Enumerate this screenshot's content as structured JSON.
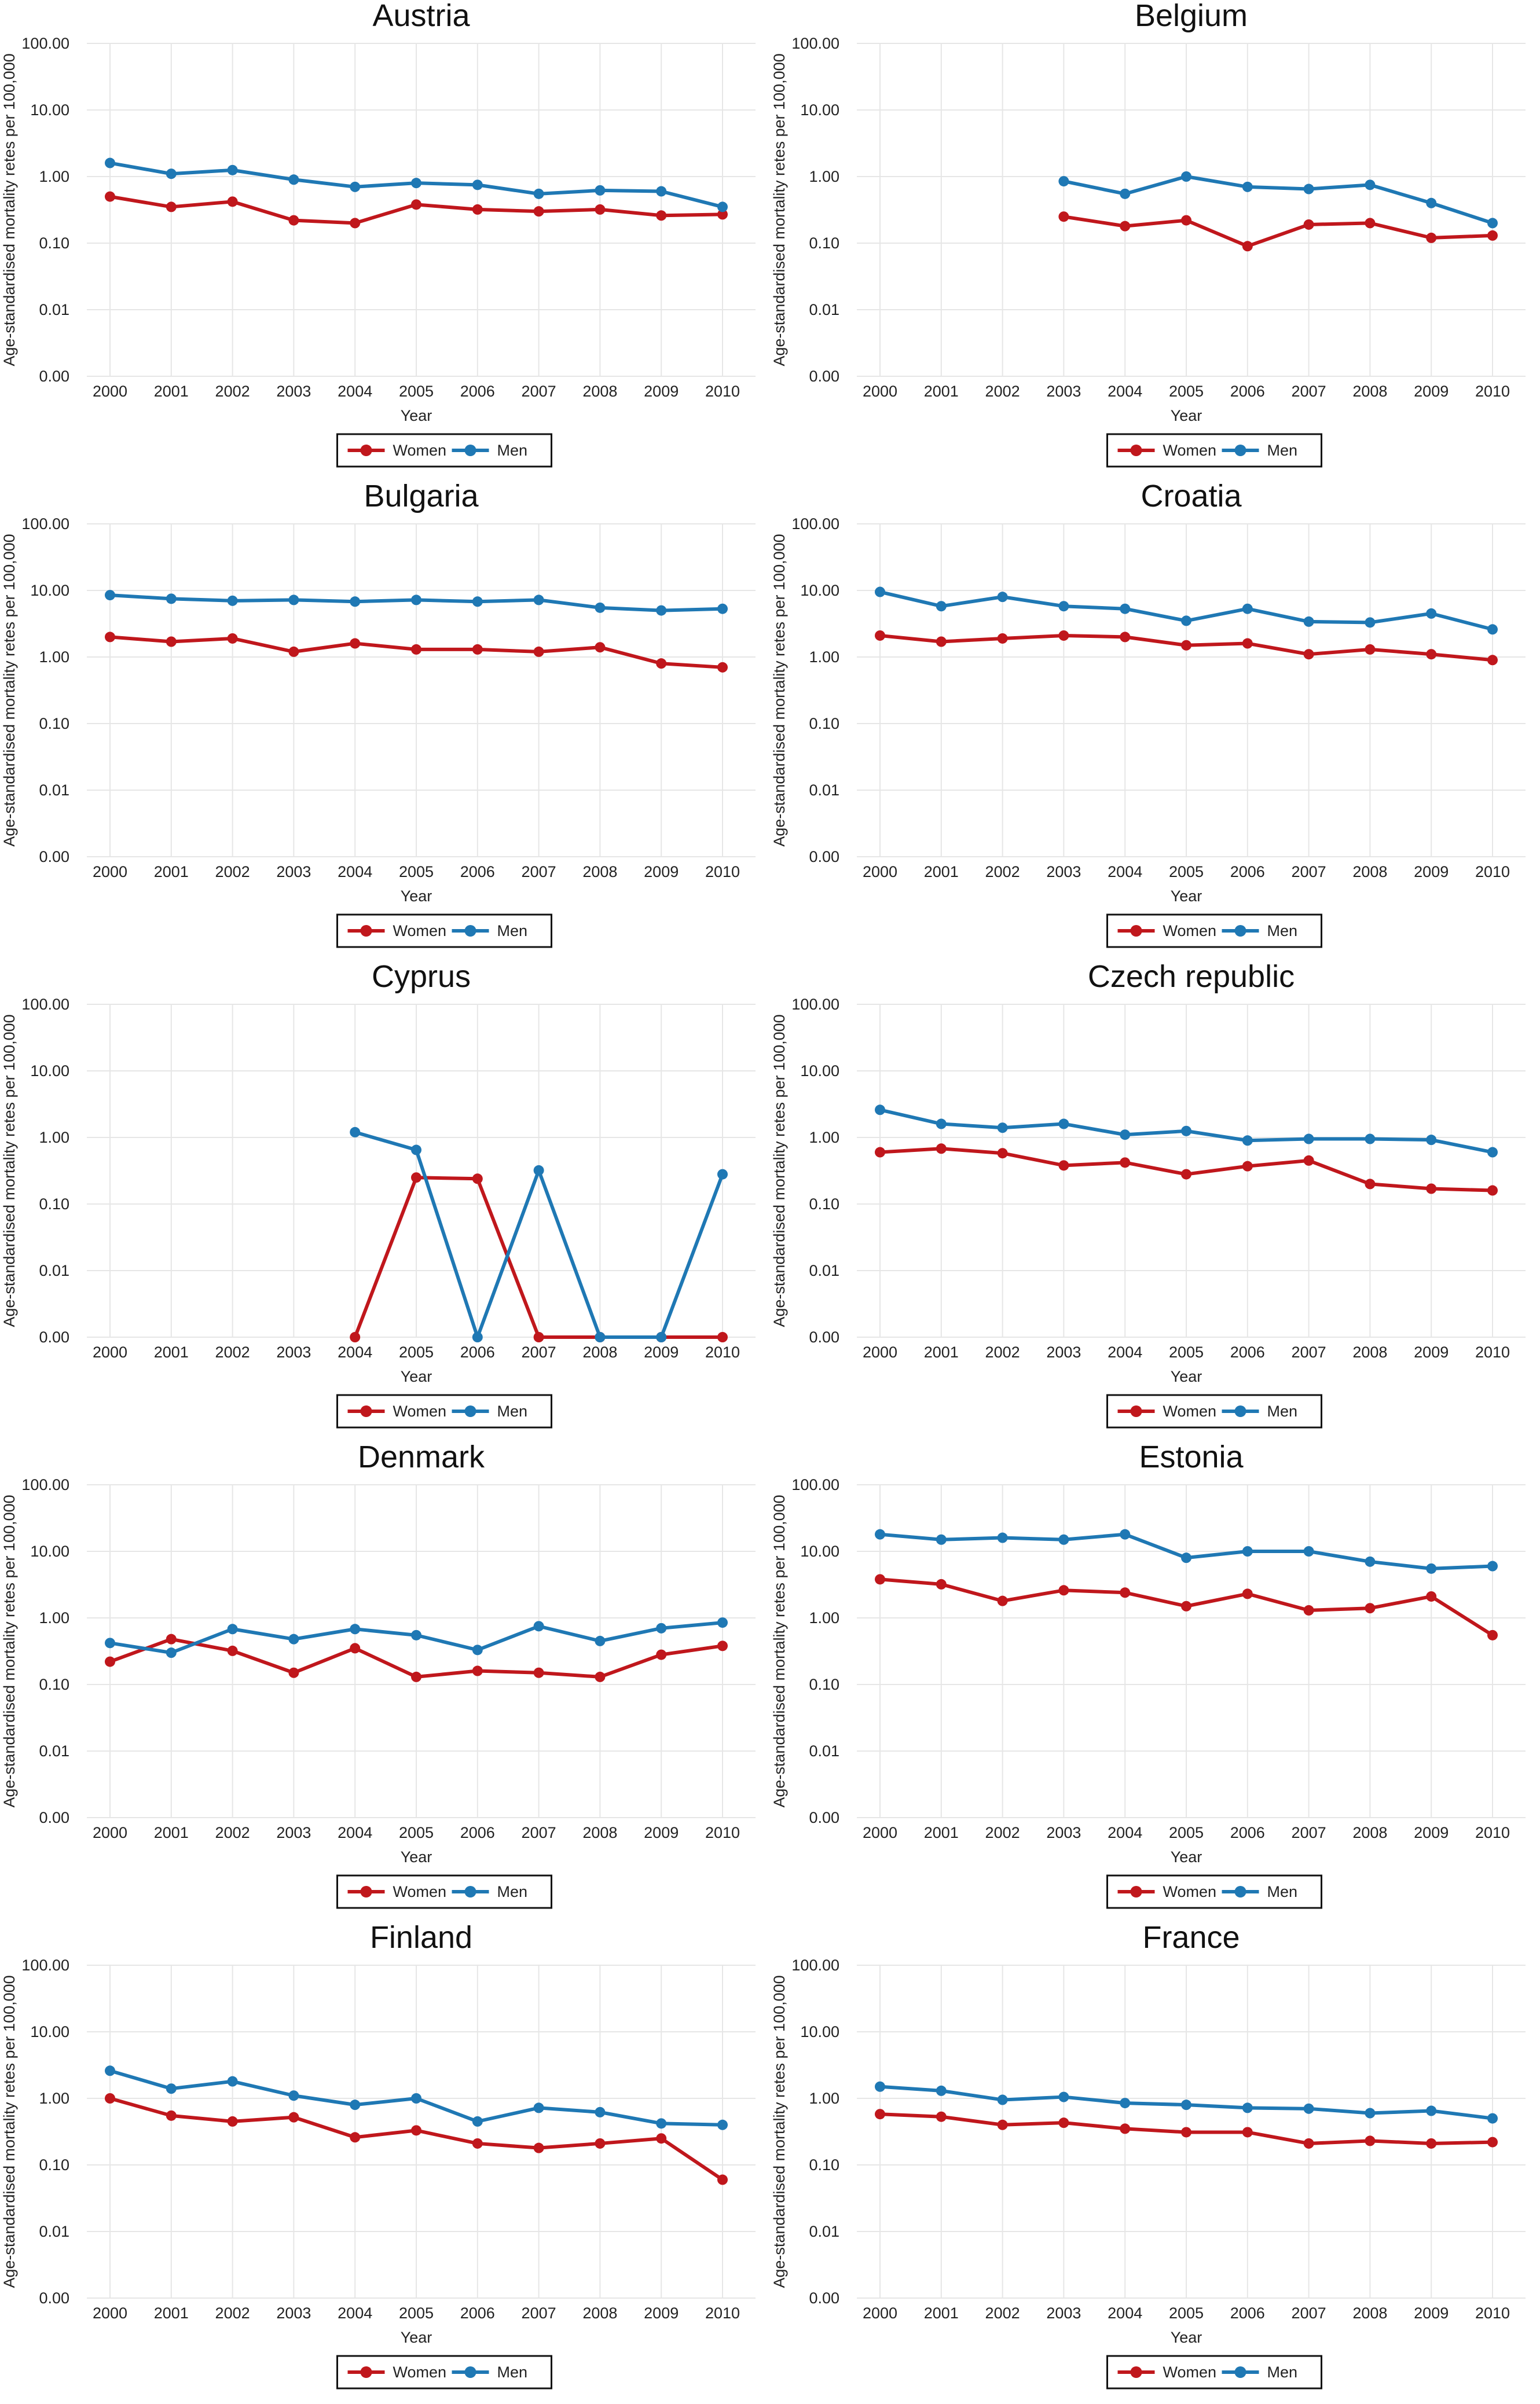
{
  "colors": {
    "women": "#c0171c",
    "men": "#1f78b4"
  },
  "chart_data": [
    {
      "type": "line",
      "title": "Austria",
      "xlabel": "Year",
      "ylabel": "Age-standardised mortality retes per 100,000",
      "scale": "log",
      "yticks": [
        "0.00",
        "0.01",
        "0.10",
        "1.00",
        "10.00",
        "100.00"
      ],
      "x": [
        "2000",
        "2001",
        "2002",
        "2003",
        "2004",
        "2005",
        "2006",
        "2007",
        "2008",
        "2009",
        "2010"
      ],
      "series": [
        {
          "name": "Women",
          "values": [
            0.5,
            0.35,
            0.42,
            0.22,
            0.2,
            0.38,
            0.32,
            0.3,
            0.32,
            0.26,
            0.27
          ]
        },
        {
          "name": "Men",
          "values": [
            1.6,
            1.1,
            1.25,
            0.9,
            0.7,
            0.8,
            0.75,
            0.55,
            0.62,
            0.6,
            0.35
          ]
        }
      ],
      "legend": [
        "Women",
        "Men"
      ]
    },
    {
      "type": "line",
      "title": "Belgium",
      "xlabel": "Year",
      "ylabel": "Age-standardised mortality retes per 100,000",
      "scale": "log",
      "yticks": [
        "0.00",
        "0.01",
        "0.10",
        "1.00",
        "10.00",
        "100.00"
      ],
      "x": [
        "2000",
        "2001",
        "2002",
        "2003",
        "2004",
        "2005",
        "2006",
        "2007",
        "2008",
        "2009",
        "2010"
      ],
      "series": [
        {
          "name": "Women",
          "values": [
            null,
            null,
            null,
            0.25,
            0.18,
            0.22,
            0.09,
            0.19,
            0.2,
            0.12,
            0.13
          ]
        },
        {
          "name": "Men",
          "values": [
            null,
            null,
            null,
            0.85,
            0.55,
            1.0,
            0.7,
            0.65,
            0.75,
            0.4,
            0.2
          ]
        }
      ],
      "legend": [
        "Women",
        "Men"
      ]
    },
    {
      "type": "line",
      "title": "Bulgaria",
      "xlabel": "Year",
      "ylabel": "Age-standardised mortality retes per 100,000",
      "scale": "log",
      "yticks": [
        "0.00",
        "0.01",
        "0.10",
        "1.00",
        "10.00",
        "100.00"
      ],
      "x": [
        "2000",
        "2001",
        "2002",
        "2003",
        "2004",
        "2005",
        "2006",
        "2007",
        "2008",
        "2009",
        "2010"
      ],
      "series": [
        {
          "name": "Women",
          "values": [
            2.0,
            1.7,
            1.9,
            1.2,
            1.6,
            1.3,
            1.3,
            1.2,
            1.4,
            0.8,
            0.7
          ]
        },
        {
          "name": "Men",
          "values": [
            8.5,
            7.5,
            7.0,
            7.2,
            6.8,
            7.2,
            6.8,
            7.2,
            5.5,
            5.0,
            5.3
          ]
        }
      ],
      "legend": [
        "Women",
        "Men"
      ]
    },
    {
      "type": "line",
      "title": "Croatia",
      "xlabel": "Year",
      "ylabel": "Age-standardised mortality retes per 100,000",
      "scale": "log",
      "yticks": [
        "0.00",
        "0.01",
        "0.10",
        "1.00",
        "10.00",
        "100.00"
      ],
      "x": [
        "2000",
        "2001",
        "2002",
        "2003",
        "2004",
        "2005",
        "2006",
        "2007",
        "2008",
        "2009",
        "2010"
      ],
      "series": [
        {
          "name": "Women",
          "values": [
            2.1,
            1.7,
            1.9,
            2.1,
            2.0,
            1.5,
            1.6,
            1.1,
            1.3,
            1.1,
            0.9
          ]
        },
        {
          "name": "Men",
          "values": [
            9.5,
            5.8,
            8.0,
            5.8,
            5.3,
            3.5,
            5.3,
            3.4,
            3.3,
            4.5,
            2.6
          ]
        }
      ],
      "legend": [
        "Women",
        "Men"
      ]
    },
    {
      "type": "line",
      "title": "Cyprus",
      "xlabel": "Year",
      "ylabel": "Age-standardised mortality retes per 100,000",
      "scale": "log",
      "yticks": [
        "0.00",
        "0.01",
        "0.10",
        "1.00",
        "10.00",
        "100.00"
      ],
      "x": [
        "2000",
        "2001",
        "2002",
        "2003",
        "2004",
        "2005",
        "2006",
        "2007",
        "2008",
        "2009",
        "2010"
      ],
      "series": [
        {
          "name": "Women",
          "values": [
            null,
            null,
            null,
            null,
            0.0,
            0.25,
            0.24,
            0.0,
            0.0,
            0.0,
            0.0
          ]
        },
        {
          "name": "Men",
          "values": [
            null,
            null,
            null,
            null,
            1.2,
            0.65,
            0.0,
            0.32,
            0.0,
            0.0,
            0.28
          ]
        }
      ],
      "legend": [
        "Women",
        "Men"
      ]
    },
    {
      "type": "line",
      "title": "Czech republic",
      "xlabel": "Year",
      "ylabel": "Age-standardised mortality retes per 100,000",
      "scale": "log",
      "yticks": [
        "0.00",
        "0.01",
        "0.10",
        "1.00",
        "10.00",
        "100.00"
      ],
      "x": [
        "2000",
        "2001",
        "2002",
        "2003",
        "2004",
        "2005",
        "2006",
        "2007",
        "2008",
        "2009",
        "2010"
      ],
      "series": [
        {
          "name": "Women",
          "values": [
            0.6,
            0.68,
            0.58,
            0.38,
            0.42,
            0.28,
            0.37,
            0.45,
            0.2,
            0.17,
            0.16
          ]
        },
        {
          "name": "Men",
          "values": [
            2.6,
            1.6,
            1.4,
            1.6,
            1.1,
            1.25,
            0.9,
            0.95,
            0.95,
            0.92,
            0.6
          ]
        }
      ],
      "legend": [
        "Women",
        "Men"
      ]
    },
    {
      "type": "line",
      "title": "Denmark",
      "xlabel": "Year",
      "ylabel": "Age-standardised mortality retes per 100,000",
      "scale": "log",
      "yticks": [
        "0.00",
        "0.01",
        "0.10",
        "1.00",
        "10.00",
        "100.00"
      ],
      "x": [
        "2000",
        "2001",
        "2002",
        "2003",
        "2004",
        "2005",
        "2006",
        "2007",
        "2008",
        "2009",
        "2010"
      ],
      "series": [
        {
          "name": "Women",
          "values": [
            0.22,
            0.48,
            0.32,
            0.15,
            0.35,
            0.13,
            0.16,
            0.15,
            0.13,
            0.28,
            0.38
          ]
        },
        {
          "name": "Men",
          "values": [
            0.42,
            0.3,
            0.68,
            0.48,
            0.68,
            0.55,
            0.33,
            0.75,
            0.45,
            0.7,
            0.85
          ]
        }
      ],
      "legend": [
        "Women",
        "Men"
      ]
    },
    {
      "type": "line",
      "title": "Estonia",
      "xlabel": "Year",
      "ylabel": "Age-standardised mortality retes per 100,000",
      "scale": "log",
      "yticks": [
        "0.00",
        "0.01",
        "0.10",
        "1.00",
        "10.00",
        "100.00"
      ],
      "x": [
        "2000",
        "2001",
        "2002",
        "2003",
        "2004",
        "2005",
        "2006",
        "2007",
        "2008",
        "2009",
        "2010"
      ],
      "series": [
        {
          "name": "Women",
          "values": [
            3.8,
            3.2,
            1.8,
            2.6,
            2.4,
            1.5,
            2.3,
            1.3,
            1.4,
            2.1,
            0.55
          ]
        },
        {
          "name": "Men",
          "values": [
            18,
            15,
            16,
            15,
            18,
            8,
            10,
            10,
            7,
            5.5,
            6
          ]
        }
      ],
      "legend": [
        "Women",
        "Men"
      ]
    },
    {
      "type": "line",
      "title": "Finland",
      "xlabel": "Year",
      "ylabel": "Age-standardised mortality retes per 100,000",
      "scale": "log",
      "yticks": [
        "0.00",
        "0.01",
        "0.10",
        "1.00",
        "10.00",
        "100.00"
      ],
      "x": [
        "2000",
        "2001",
        "2002",
        "2003",
        "2004",
        "2005",
        "2006",
        "2007",
        "2008",
        "2009",
        "2010"
      ],
      "series": [
        {
          "name": "Women",
          "values": [
            1.0,
            0.55,
            0.45,
            0.52,
            0.26,
            0.33,
            0.21,
            0.18,
            0.21,
            0.25,
            0.06
          ]
        },
        {
          "name": "Men",
          "values": [
            2.6,
            1.4,
            1.8,
            1.1,
            0.8,
            1.0,
            0.45,
            0.72,
            0.62,
            0.42,
            0.4
          ]
        }
      ],
      "legend": [
        "Women",
        "Men"
      ]
    },
    {
      "type": "line",
      "title": "France",
      "xlabel": "Year",
      "ylabel": "Age-standardised mortality retes per 100,000",
      "scale": "log",
      "yticks": [
        "0.00",
        "0.01",
        "0.10",
        "1.00",
        "10.00",
        "100.00"
      ],
      "x": [
        "2000",
        "2001",
        "2002",
        "2003",
        "2004",
        "2005",
        "2006",
        "2007",
        "2008",
        "2009",
        "2010"
      ],
      "series": [
        {
          "name": "Women",
          "values": [
            0.58,
            0.53,
            0.4,
            0.43,
            0.35,
            0.31,
            0.31,
            0.21,
            0.23,
            0.21,
            0.22
          ]
        },
        {
          "name": "Men",
          "values": [
            1.5,
            1.3,
            0.95,
            1.05,
            0.85,
            0.8,
            0.72,
            0.7,
            0.6,
            0.65,
            0.5
          ]
        }
      ],
      "legend": [
        "Women",
        "Men"
      ]
    }
  ]
}
